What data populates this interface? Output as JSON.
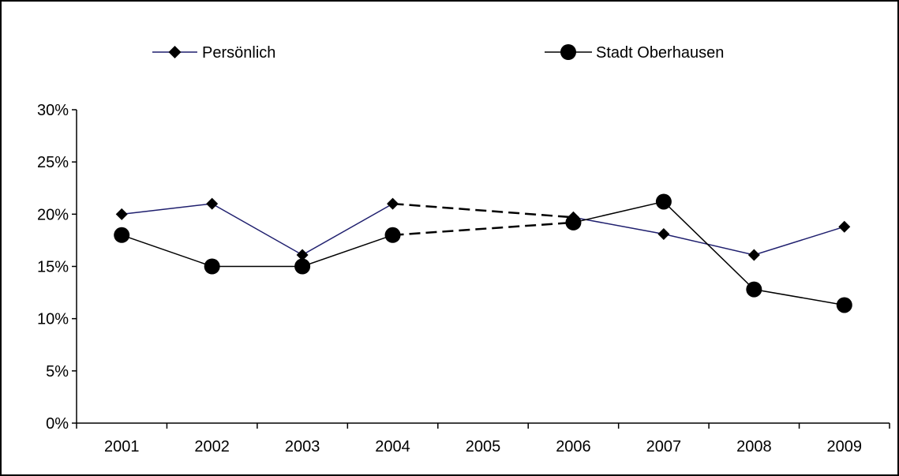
{
  "chart_data": {
    "type": "line",
    "title": "",
    "xlabel": "",
    "ylabel": "",
    "categories": [
      "2001",
      "2002",
      "2003",
      "2004",
      "2005",
      "2006",
      "2007",
      "2008",
      "2009"
    ],
    "yticks": [
      "0%",
      "5%",
      "10%",
      "15%",
      "20%",
      "25%",
      "30%"
    ],
    "ylim": [
      0,
      30
    ],
    "grid": false,
    "legend_position": "top",
    "series": [
      {
        "name": "Persönlich",
        "color": "#1f1f6e",
        "marker": "diamond",
        "values": [
          20,
          21,
          16.1,
          21,
          null,
          19.7,
          18.1,
          16.1,
          18.8
        ]
      },
      {
        "name": "Stadt Oberhausen",
        "color": "#000000",
        "marker": "circle",
        "values": [
          18,
          15,
          15,
          18,
          null,
          19.2,
          21.2,
          12.8,
          11.3
        ]
      }
    ],
    "gap_bridges": [
      {
        "series": "Persönlich",
        "from": "2004",
        "to": "2006",
        "style": "dashed"
      },
      {
        "series": "Stadt Oberhausen",
        "from": "2004",
        "to": "2006",
        "style": "dashed"
      }
    ]
  }
}
